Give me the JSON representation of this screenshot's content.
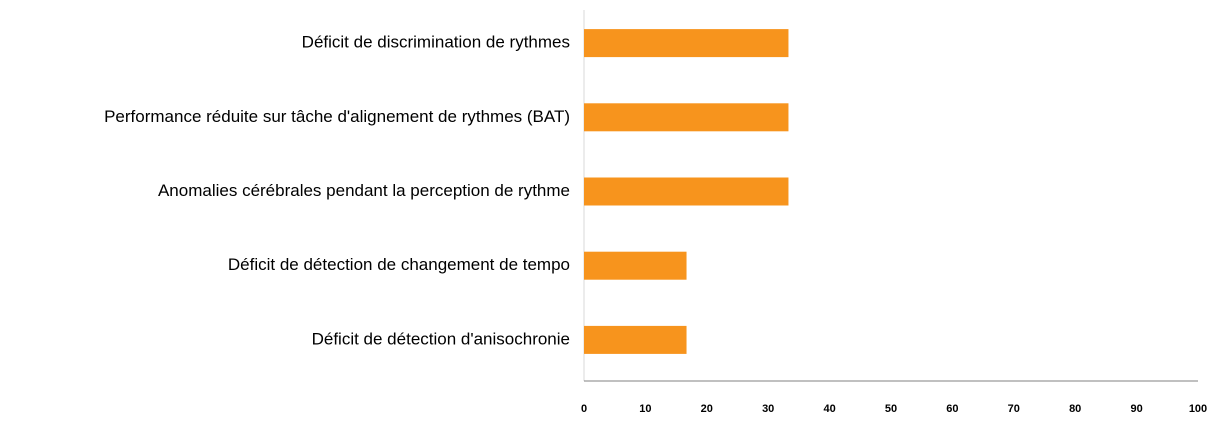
{
  "chart_data": {
    "type": "bar",
    "orientation": "horizontal",
    "categories": [
      "Déficit de discrimination de rythmes",
      "Performance réduite sur tâche d'alignement de rythmes (BAT)",
      "Anomalies cérébrales pendant la perception de rythme",
      "Déficit de détection de changement de tempo",
      "Déficit de détection d'anisochronie"
    ],
    "values": [
      33.3,
      33.3,
      33.3,
      16.7,
      16.7
    ],
    "color": "#f7941d",
    "xlim": [
      0,
      100
    ],
    "xticks": [
      0,
      10,
      20,
      30,
      40,
      50,
      60,
      70,
      80,
      90,
      100
    ],
    "grid": false
  }
}
